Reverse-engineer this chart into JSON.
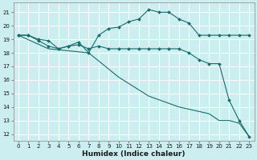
{
  "title": "",
  "xlabel": "Humidex (Indice chaleur)",
  "bg_color": "#cceef0",
  "grid_color": "#ffffff",
  "line_color": "#1a6b6b",
  "ylim": [
    11.5,
    21.7
  ],
  "xlim": [
    -0.5,
    23.5
  ],
  "yticks": [
    12,
    13,
    14,
    15,
    16,
    17,
    18,
    19,
    20,
    21
  ],
  "xticks": [
    0,
    1,
    2,
    3,
    4,
    5,
    6,
    7,
    8,
    9,
    10,
    11,
    12,
    13,
    14,
    15,
    16,
    17,
    18,
    19,
    20,
    21,
    22,
    23
  ],
  "line1_x": [
    0,
    1,
    2,
    3,
    4,
    5,
    6,
    7,
    8,
    9,
    10,
    11,
    12,
    13,
    14,
    15,
    16,
    17,
    18,
    19,
    20,
    21,
    22,
    23
  ],
  "line1_y": [
    19.3,
    19.3,
    19.0,
    18.9,
    18.3,
    18.5,
    18.8,
    18.0,
    19.3,
    19.8,
    19.9,
    20.3,
    20.5,
    21.2,
    21.0,
    21.0,
    20.5,
    20.2,
    19.3,
    19.3,
    19.3,
    19.3,
    19.3,
    19.3
  ],
  "line1_has_markers": true,
  "line2_x": [
    0,
    1,
    2,
    3,
    4,
    5,
    6,
    7,
    8,
    9,
    10,
    11,
    12,
    13,
    14,
    15,
    16,
    17,
    18,
    19,
    20,
    21,
    22,
    23
  ],
  "line2_y": [
    19.3,
    19.3,
    18.9,
    18.5,
    18.3,
    18.5,
    18.6,
    18.3,
    18.5,
    18.3,
    18.3,
    18.3,
    18.3,
    18.3,
    18.3,
    18.3,
    18.3,
    18.0,
    17.5,
    17.2,
    17.2,
    14.5,
    13.0,
    11.8
  ],
  "line2_has_markers": true,
  "line3_x": [
    0,
    3,
    7,
    10,
    13,
    16,
    19,
    20,
    21,
    22,
    23
  ],
  "line3_y": [
    19.3,
    18.3,
    18.0,
    16.2,
    14.8,
    14.0,
    13.5,
    13.0,
    13.0,
    12.8,
    11.8
  ],
  "line3_has_markers": false,
  "markersize": 2.0,
  "linewidth": 0.8,
  "tick_fontsize": 5.0,
  "xlabel_fontsize": 6.5
}
